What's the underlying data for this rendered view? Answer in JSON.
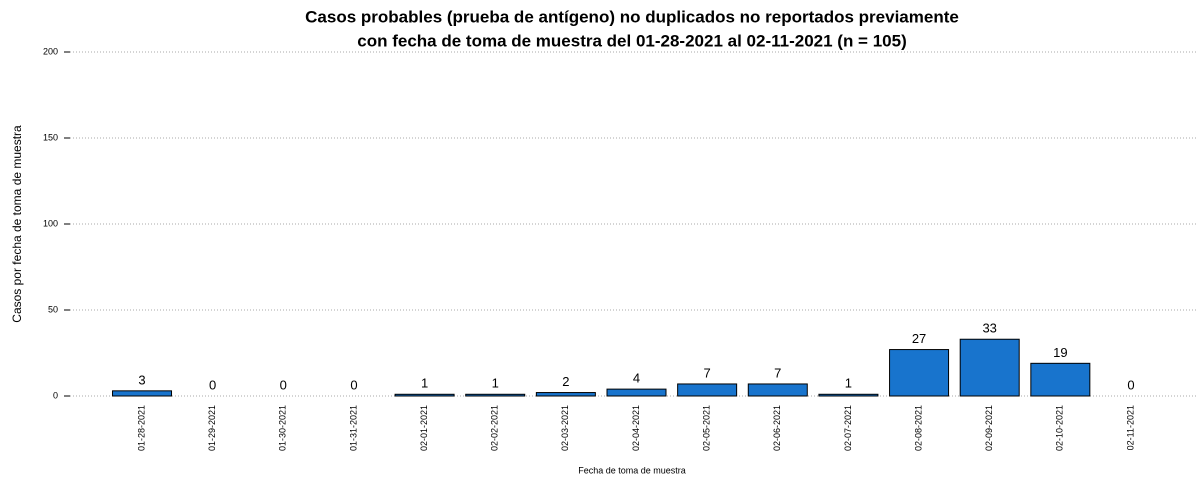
{
  "chart_data": {
    "type": "bar",
    "title": [
      "Casos probables (prueba de antígeno) no duplicados no reportados previamente",
      "con fecha de toma de muestra del 01-28-2021 al 02-11-2021 (n = 105)"
    ],
    "xlabel": "Fecha de toma de muestra",
    "ylabel": "Casos por fecha de toma de muestra",
    "categories": [
      "01-28-2021",
      "01-29-2021",
      "01-30-2021",
      "01-31-2021",
      "02-01-2021",
      "02-02-2021",
      "02-03-2021",
      "02-04-2021",
      "02-05-2021",
      "02-06-2021",
      "02-07-2021",
      "02-08-2021",
      "02-09-2021",
      "02-10-2021",
      "02-11-2021"
    ],
    "values": [
      3,
      0,
      0,
      0,
      1,
      1,
      2,
      4,
      7,
      7,
      1,
      27,
      33,
      19,
      0
    ],
    "color": "#1874cd",
    "ylim": [
      0,
      200
    ],
    "yticks": [
      0,
      50,
      100,
      150,
      200
    ],
    "grid": true
  }
}
